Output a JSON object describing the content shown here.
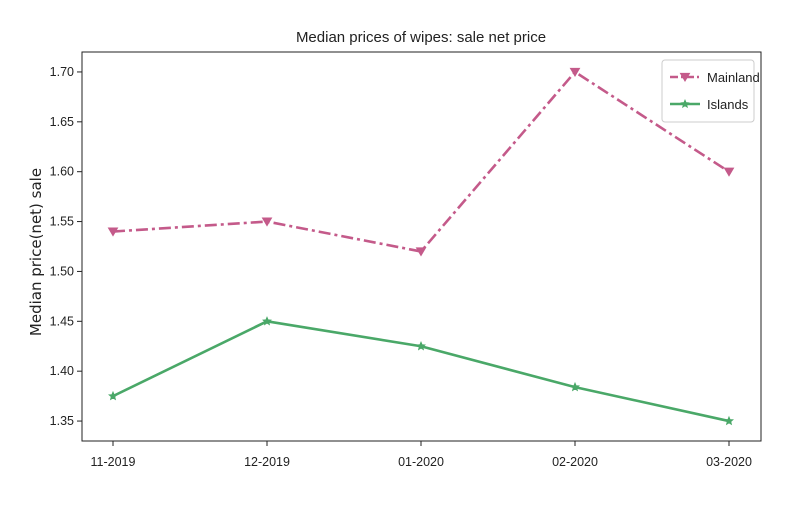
{
  "chart_data": {
    "type": "line",
    "title": "Median prices of wipes: sale net price",
    "xlabel": "",
    "ylabel": "Median price(net) sale",
    "categories": [
      "11-2019",
      "12-2019",
      "01-2020",
      "02-2020",
      "03-2020"
    ],
    "ylim": [
      1.33,
      1.72
    ],
    "yticks": [
      1.35,
      1.4,
      1.45,
      1.5,
      1.55,
      1.6,
      1.65,
      1.7
    ],
    "ytick_labels": [
      "1.35",
      "1.40",
      "1.45",
      "1.50",
      "1.55",
      "1.60",
      "1.65",
      "1.70"
    ],
    "grid": false,
    "legend_position": "top-right",
    "series": [
      {
        "name": "Mainland",
        "values": [
          1.54,
          1.55,
          1.52,
          1.7,
          1.6
        ],
        "color": "#c45a8a",
        "line_style": "dash-dot",
        "marker": "triangle-down"
      },
      {
        "name": "Islands",
        "values": [
          1.375,
          1.45,
          1.425,
          1.384,
          1.35
        ],
        "color": "#4aa868",
        "line_style": "solid",
        "marker": "star"
      }
    ]
  }
}
